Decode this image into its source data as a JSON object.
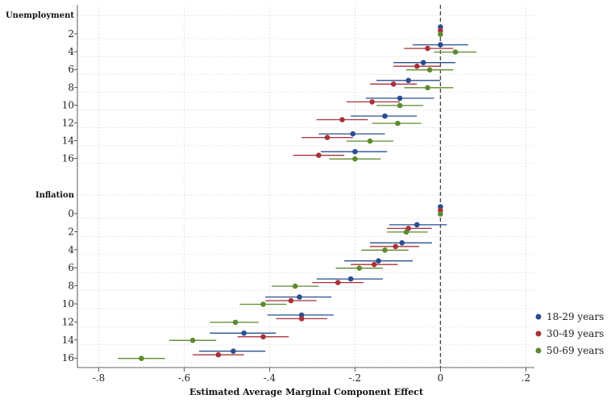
{
  "chart_data": {
    "type": "scatter",
    "subtype": "dot-and-whisker (horizontal)",
    "xlabel": "Estimated Average Marginal Component Effect",
    "xlim": [
      -0.85,
      0.22
    ],
    "x_ticks": [
      "-.8",
      "-.6",
      "-.4",
      "-.2",
      "0",
      ".2"
    ],
    "x_tick_values": [
      -0.8,
      -0.6,
      -0.4,
      -0.2,
      0,
      0.2
    ],
    "reference_line": {
      "x": 0,
      "style": "dashed"
    },
    "grid": "vertical dotted at x ticks; horizontal dotted at each level",
    "legend_position": "bottom-right",
    "series": [
      {
        "name": "18-29 years",
        "color": "#2a4d8f"
      },
      {
        "name": "30-49 years",
        "color": "#a8323a"
      },
      {
        "name": "50-69 years",
        "color": "#5e8a2e"
      }
    ],
    "groups": [
      {
        "label": "Unemployment",
        "levels": [
          {
            "label": "2",
            "est": [
              0,
              0,
              0
            ],
            "lo": [
              0,
              0,
              0
            ],
            "hi": [
              0,
              0,
              0
            ]
          },
          {
            "label": "4",
            "est": [
              0.0,
              -0.03,
              0.035
            ],
            "lo": [
              -0.065,
              -0.085,
              -0.015
            ],
            "hi": [
              0.065,
              0.03,
              0.085
            ]
          },
          {
            "label": "6",
            "est": [
              -0.04,
              -0.055,
              -0.025
            ],
            "lo": [
              -0.11,
              -0.11,
              -0.08
            ],
            "hi": [
              0.035,
              0.0,
              0.03
            ]
          },
          {
            "label": "8",
            "est": [
              -0.075,
              -0.11,
              -0.03
            ],
            "lo": [
              -0.15,
              -0.165,
              -0.085
            ],
            "hi": [
              0.0,
              -0.055,
              0.03
            ]
          },
          {
            "label": "10",
            "est": [
              -0.095,
              -0.16,
              -0.095
            ],
            "lo": [
              -0.175,
              -0.22,
              -0.15
            ],
            "hi": [
              -0.015,
              -0.095,
              -0.04
            ]
          },
          {
            "label": "12",
            "est": [
              -0.13,
              -0.23,
              -0.1
            ],
            "lo": [
              -0.21,
              -0.29,
              -0.16
            ],
            "hi": [
              -0.055,
              -0.17,
              -0.045
            ]
          },
          {
            "label": "14",
            "est": [
              -0.205,
              -0.265,
              -0.165
            ],
            "lo": [
              -0.285,
              -0.325,
              -0.22
            ],
            "hi": [
              -0.13,
              -0.205,
              -0.11
            ]
          },
          {
            "label": "16",
            "est": [
              -0.2,
              -0.285,
              -0.2
            ],
            "lo": [
              -0.28,
              -0.345,
              -0.26
            ],
            "hi": [
              -0.125,
              -0.225,
              -0.14
            ]
          }
        ]
      },
      {
        "label": "Inflation",
        "levels": [
          {
            "label": "0",
            "est": [
              0,
              0,
              0
            ],
            "lo": [
              0,
              0,
              0
            ],
            "hi": [
              0,
              0,
              0
            ]
          },
          {
            "label": "2",
            "est": [
              -0.055,
              -0.075,
              -0.08
            ],
            "lo": [
              -0.12,
              -0.125,
              -0.125
            ],
            "hi": [
              0.015,
              -0.02,
              -0.03
            ]
          },
          {
            "label": "4",
            "est": [
              -0.09,
              -0.105,
              -0.13
            ],
            "lo": [
              -0.165,
              -0.165,
              -0.185
            ],
            "hi": [
              -0.02,
              -0.05,
              -0.075
            ]
          },
          {
            "label": "6",
            "est": [
              -0.145,
              -0.155,
              -0.19
            ],
            "lo": [
              -0.225,
              -0.21,
              -0.245
            ],
            "hi": [
              -0.065,
              -0.1,
              -0.135
            ]
          },
          {
            "label": "8",
            "est": [
              -0.21,
              -0.24,
              -0.34
            ],
            "lo": [
              -0.29,
              -0.3,
              -0.395
            ],
            "hi": [
              -0.135,
              -0.18,
              -0.285
            ]
          },
          {
            "label": "10",
            "est": [
              -0.33,
              -0.35,
              -0.415
            ],
            "lo": [
              -0.41,
              -0.41,
              -0.47
            ],
            "hi": [
              -0.255,
              -0.29,
              -0.36
            ]
          },
          {
            "label": "12",
            "est": [
              -0.325,
              -0.325,
              -0.48
            ],
            "lo": [
              -0.405,
              -0.385,
              -0.54
            ],
            "hi": [
              -0.25,
              -0.265,
              -0.425
            ]
          },
          {
            "label": "14",
            "est": [
              -0.46,
              -0.415,
              -0.58
            ],
            "lo": [
              -0.54,
              -0.475,
              -0.635
            ],
            "hi": [
              -0.385,
              -0.355,
              -0.525
            ]
          },
          {
            "label": "16",
            "est": [
              -0.485,
              -0.52,
              -0.7
            ],
            "lo": [
              -0.565,
              -0.58,
              -0.755
            ],
            "hi": [
              -0.41,
              -0.46,
              -0.645
            ]
          }
        ]
      }
    ]
  }
}
